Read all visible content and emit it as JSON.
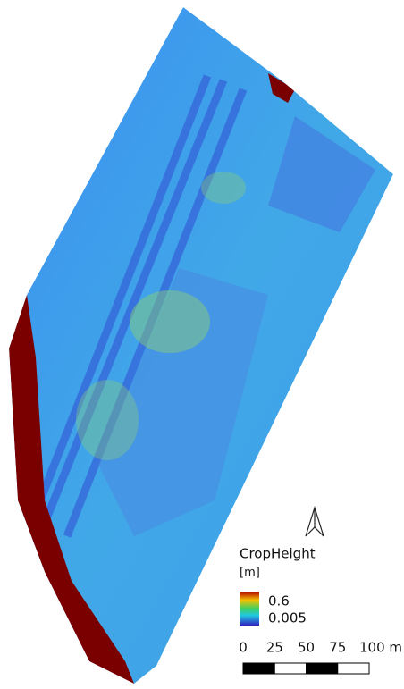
{
  "legend": {
    "title": "CropHeight",
    "unit": "[m]",
    "max": 0.6,
    "min": 0.005
  },
  "scale_bar": {
    "ticks": [
      0,
      25,
      50,
      75,
      {
        "value": 100,
        "label": "100 m"
      }
    ]
  }
}
